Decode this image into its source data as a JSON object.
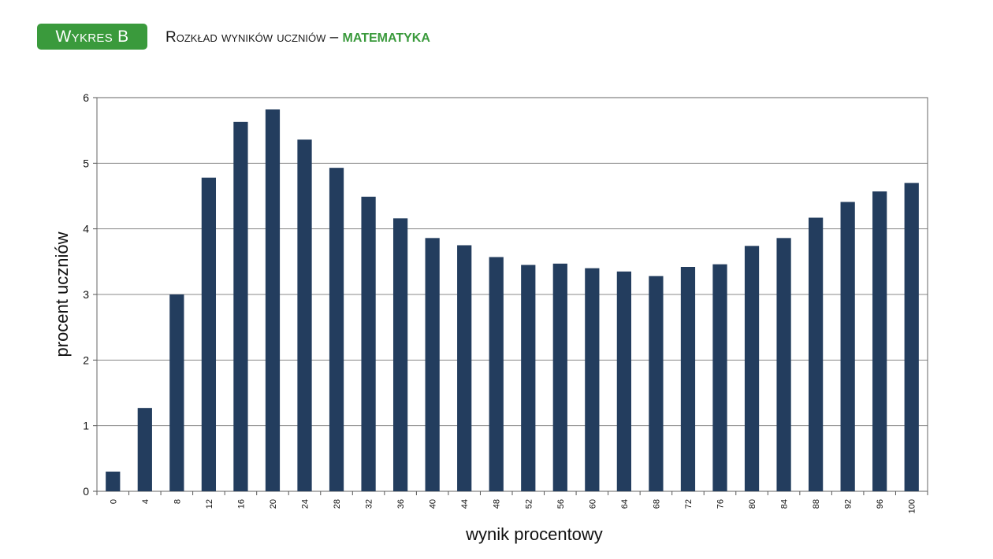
{
  "header": {
    "badge": "Wykres B",
    "title_main": "Rozkład wyników uczniów – ",
    "title_subject": "MATEMATYKA"
  },
  "colors": {
    "bar": "#233d5e",
    "accent": "#3a9a3c",
    "grid": "#888888"
  },
  "chart_data": {
    "type": "bar",
    "title": "",
    "xlabel": "wynik procentowy",
    "ylabel": "procent uczniów",
    "ylim": [
      0,
      6
    ],
    "yticks": [
      0,
      1,
      2,
      3,
      4,
      5,
      6
    ],
    "grid": true,
    "categories": [
      "0",
      "4",
      "8",
      "12",
      "16",
      "20",
      "24",
      "28",
      "32",
      "36",
      "40",
      "44",
      "48",
      "52",
      "56",
      "60",
      "64",
      "68",
      "72",
      "76",
      "80",
      "84",
      "88",
      "92",
      "96",
      "100"
    ],
    "values": [
      0.3,
      1.27,
      3.0,
      4.78,
      5.63,
      5.82,
      5.36,
      4.93,
      4.49,
      4.16,
      3.86,
      3.75,
      3.57,
      3.45,
      3.47,
      3.4,
      3.35,
      3.28,
      3.42,
      3.46,
      3.74,
      3.86,
      4.17,
      4.41,
      4.57,
      4.7
    ]
  }
}
